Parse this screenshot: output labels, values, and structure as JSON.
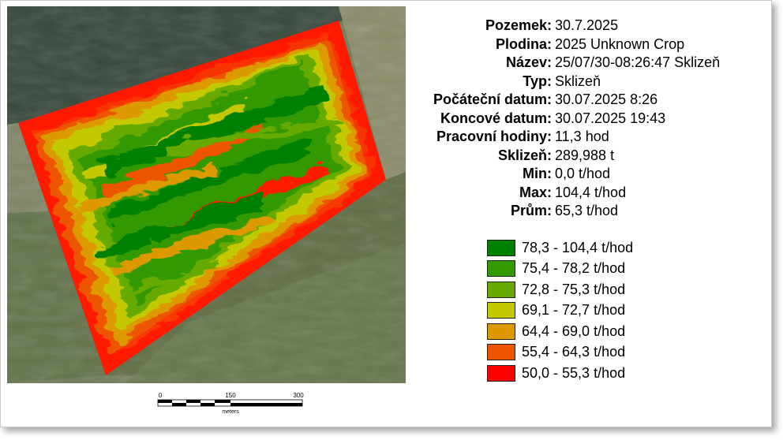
{
  "info": [
    {
      "key": "Pozemek:",
      "value": "30.7.2025"
    },
    {
      "key": "Plodina:",
      "value": "2025 Unknown Crop"
    },
    {
      "key": "Název:",
      "value": "25/07/30-08:26:47 Sklizeň"
    },
    {
      "key": "Typ:",
      "value": "Sklizeň"
    },
    {
      "key": "Počáteční datum:",
      "value": "30.07.2025 8:26"
    },
    {
      "key": "Koncové datum:",
      "value": "30.07.2025 19:43"
    },
    {
      "key": "Pracovní hodiny:",
      "value": "11,3 hod"
    },
    {
      "key": "Sklizeň:",
      "value": "289,988 t"
    },
    {
      "key": "Min:",
      "value": "0,0 t/hod"
    },
    {
      "key": "Max:",
      "value": "104,4 t/hod"
    },
    {
      "key": "Prům:",
      "value": "65,3 t/hod"
    }
  ],
  "legend": [
    {
      "label": "78,3 - 104,4 t/hod",
      "color": "#008000"
    },
    {
      "label": "75,4 - 78,2 t/hod",
      "color": "#339900"
    },
    {
      "label": "72,8 - 75,3 t/hod",
      "color": "#66aa00"
    },
    {
      "label": "69,1 - 72,7 t/hod",
      "color": "#c3c800"
    },
    {
      "label": "64,4 - 69,0 t/hod",
      "color": "#dd9900"
    },
    {
      "label": "55,4 - 64,3 t/hod",
      "color": "#ee5500"
    },
    {
      "label": "50,0 - 55,3 t/hod",
      "color": "#ff0000"
    }
  ],
  "scale_bar": {
    "labels": [
      "0",
      "150",
      "300"
    ],
    "unit": "meters"
  }
}
